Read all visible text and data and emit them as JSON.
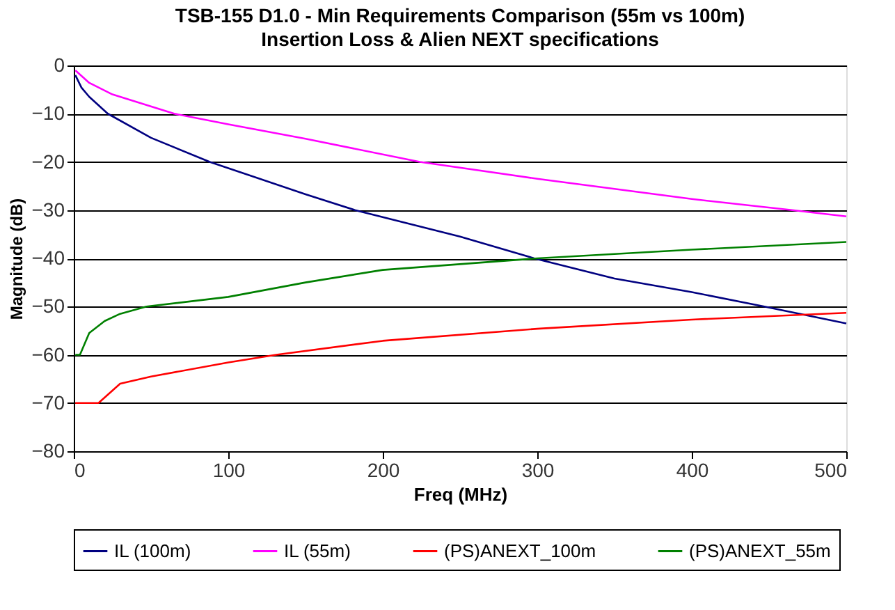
{
  "chart_data": {
    "type": "line",
    "title": "TSB-155 D1.0 - Min Requirements Comparison (55m vs 100m)",
    "subtitle": "Insertion Loss & Alien NEXT specifications",
    "xlabel": "Freq (MHz)",
    "ylabel": "Magnitude (dB)",
    "xlim": [
      0,
      500
    ],
    "xticks": [
      0,
      100,
      200,
      300,
      400,
      500
    ],
    "ylim": [
      -80,
      0
    ],
    "yticks": [
      0,
      -10,
      -20,
      -30,
      -40,
      -50,
      -60,
      -70,
      -80
    ],
    "grid": "y",
    "legend": "bottom",
    "marker": "none",
    "line_style": "solid",
    "series": [
      {
        "name": "IL (100m)",
        "color": "#000080",
        "x": [
          1,
          5,
          10,
          22,
          50,
          88,
          100,
          150,
          182,
          250,
          298,
          350,
          400,
          447,
          500
        ],
        "values": [
          -2,
          -4.6,
          -6.5,
          -10,
          -15,
          -20,
          -21.3,
          -26.7,
          -30,
          -35.5,
          -40,
          -44.2,
          -47,
          -50,
          -53.5
        ]
      },
      {
        "name": "IL (55m)",
        "color": "#ff00ff",
        "x": [
          1,
          10,
          25,
          65,
          100,
          150,
          224,
          300,
          400,
          465,
          500
        ],
        "values": [
          -1,
          -3.6,
          -6,
          -10,
          -12.2,
          -15.2,
          -20,
          -23.5,
          -27.7,
          -30,
          -31.3
        ]
      },
      {
        "name": "(PS)ANEXT_100m",
        "color": "#ff0000",
        "x": [
          1,
          16,
          30,
          50,
          100,
          131,
          200,
          300,
          400,
          500
        ],
        "values": [
          -70,
          -70,
          -66,
          -64.5,
          -61.6,
          -60,
          -57.1,
          -54.6,
          -52.7,
          -51.3
        ]
      },
      {
        "name": "(PS)ANEXT_55m",
        "color": "#008000",
        "x": [
          1,
          4,
          10,
          20,
          30,
          47,
          100,
          150,
          200,
          300,
          400,
          500
        ],
        "values": [
          -60,
          -60,
          -55.5,
          -53,
          -51.5,
          -50,
          -48,
          -45,
          -42.4,
          -40,
          -38.2,
          -36.6
        ]
      }
    ]
  }
}
